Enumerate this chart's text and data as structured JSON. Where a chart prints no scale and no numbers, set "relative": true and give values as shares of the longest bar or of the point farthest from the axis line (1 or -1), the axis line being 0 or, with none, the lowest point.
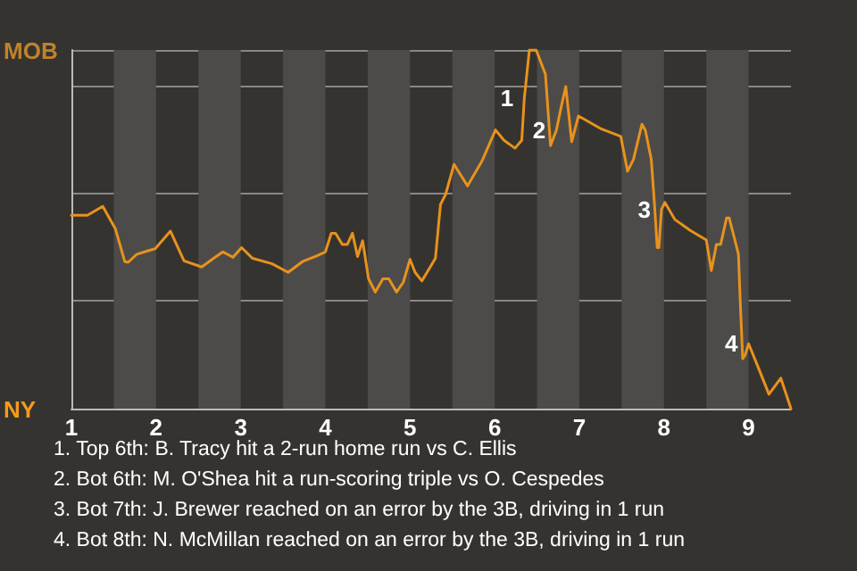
{
  "chart_data": {
    "type": "line",
    "relative": true,
    "x": [
      1,
      1.19,
      1.37,
      1.52,
      1.63,
      1.67,
      1.77,
      1.89,
      1.99,
      2.17,
      2.33,
      2.54,
      2.68,
      2.79,
      2.91,
      3.01,
      3.14,
      3.37,
      3.56,
      3.73,
      3.89,
      4,
      4.07,
      4.12,
      4.2,
      4.26,
      4.32,
      4.38,
      4.44,
      4.51,
      4.59,
      4.68,
      4.75,
      4.84,
      4.92,
      5,
      5.06,
      5.14,
      5.23,
      5.3,
      5.36,
      5.42,
      5.52,
      5.68,
      5.85,
      6.01,
      6.11,
      6.24,
      6.32,
      6.35,
      6.41,
      6.49,
      6.6,
      6.66,
      6.73,
      6.79,
      6.84,
      6.91,
      6.99,
      7.25,
      7.49,
      7.57,
      7.64,
      7.74,
      7.78,
      7.85,
      7.89,
      7.92,
      7.94,
      7.97,
      8.01,
      8.13,
      8.31,
      8.5,
      8.56,
      8.62,
      8.67,
      8.74,
      8.77,
      8.83,
      8.88,
      8.9,
      8.93,
      8.96,
      9,
      9.12,
      9.24,
      9.38,
      9.5
    ],
    "series": [
      {
        "color": "#e8921c",
        "values": [
          0.539,
          0.539,
          0.564,
          0.501,
          0.41,
          0.408,
          0.43,
          0.439,
          0.446,
          0.495,
          0.412,
          0.395,
          0.419,
          0.437,
          0.422,
          0.449,
          0.419,
          0.404,
          0.38,
          0.41,
          0.425,
          0.437,
          0.489,
          0.489,
          0.458,
          0.458,
          0.489,
          0.424,
          0.468,
          0.362,
          0.325,
          0.362,
          0.362,
          0.325,
          0.352,
          0.416,
          0.38,
          0.356,
          0.391,
          0.419,
          0.569,
          0.597,
          0.681,
          0.621,
          0.69,
          0.777,
          0.748,
          0.726,
          0.748,
          0.865,
          1,
          1,
          0.932,
          0.733,
          0.777,
          0.846,
          0.898,
          0.744,
          0.816,
          0.781,
          0.759,
          0.662,
          0.695,
          0.793,
          0.776,
          0.695,
          0.564,
          0.449,
          0.449,
          0.555,
          0.575,
          0.527,
          0.497,
          0.47,
          0.385,
          0.458,
          0.458,
          0.532,
          0.532,
          0.477,
          0.43,
          0.304,
          0.139,
          0.15,
          0.181,
          0.111,
          0.04,
          0.085,
          0
        ]
      }
    ],
    "xlim": [
      1,
      9.5
    ],
    "xticks": [
      1,
      2,
      3,
      4,
      5,
      6,
      7,
      8,
      9
    ],
    "grid": "y",
    "marker": "none",
    "line_style": "solid",
    "bands": [
      {
        "axis": "x",
        "from": 1.5,
        "to": 2,
        "color": "#4c4b49"
      },
      {
        "axis": "x",
        "from": 2.5,
        "to": 3,
        "color": "#4c4b49"
      },
      {
        "axis": "x",
        "from": 3.5,
        "to": 4,
        "color": "#4c4b49"
      },
      {
        "axis": "x",
        "from": 4.5,
        "to": 5,
        "color": "#4c4b49"
      },
      {
        "axis": "x",
        "from": 5.5,
        "to": 6,
        "color": "#4c4b49"
      },
      {
        "axis": "x",
        "from": 6.5,
        "to": 7,
        "color": "#4c4b49"
      },
      {
        "axis": "x",
        "from": 7.5,
        "to": 8,
        "color": "#4c4b49"
      },
      {
        "axis": "x",
        "from": 8.5,
        "to": 9,
        "color": "#4c4b49"
      }
    ],
    "annotations": [
      "MOB",
      "NY",
      {
        "text": "1",
        "x": 6.35,
        "y": 0.865
      },
      {
        "text": "2",
        "x": 6.73,
        "y": 0.777
      },
      {
        "text": "3",
        "x": 7.97,
        "y": 0.555
      },
      {
        "text": "4",
        "x": 9,
        "y": 0.181
      },
      "1. Top 6th: B. Tracy hit a 2-run home run vs C. Ellis",
      "2. Bot 6th: M. O'Shea hit a run-scoring triple vs O. Cespedes",
      "3. Bot 7th: J. Brewer reached on an error by the 3B, driving in 1 run",
      "4. Bot 8th: N. McMillan reached on an error by the 3B, driving in 1 run"
    ]
  }
}
